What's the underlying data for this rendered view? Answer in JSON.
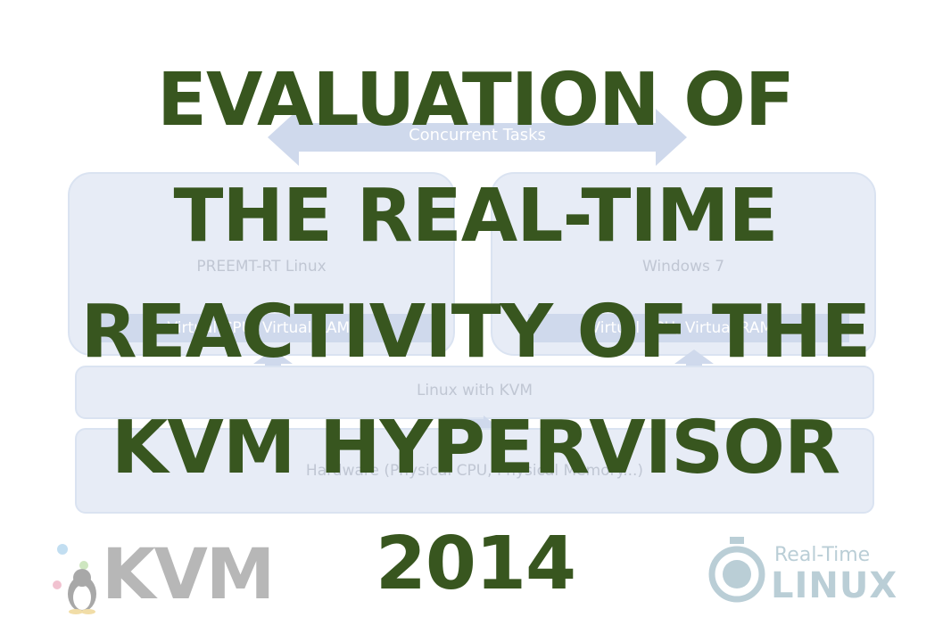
{
  "diagram": {
    "concurrent_tasks": "Concurrent Tasks",
    "left_vm": {
      "label": "PREEMT-RT Linux",
      "bar": "Virtual CPU, Virtual RAM..."
    },
    "right_vm": {
      "label": "Windows 7",
      "bar": "Virtual CPU, Virtual RAM..."
    },
    "host": "Linux with KVM",
    "hardware": "Hardware (Physical CPU, Physical Memory...)"
  },
  "title": {
    "line1": "EVALUATION OF",
    "line2": "THE REAL-TIME",
    "line3": "REACTIVITY OF THE",
    "line4": "KVM HYPERVISOR",
    "line5": "2014"
  },
  "logos": {
    "kvm": "KVM",
    "rt_top": "Real-Time",
    "rt_bottom": "LINUX"
  },
  "colors": {
    "title": "#38561f",
    "box_fill": "#c7d4ec",
    "box_border": "#a9bddf",
    "bar_fill": "#8fa6d3"
  }
}
